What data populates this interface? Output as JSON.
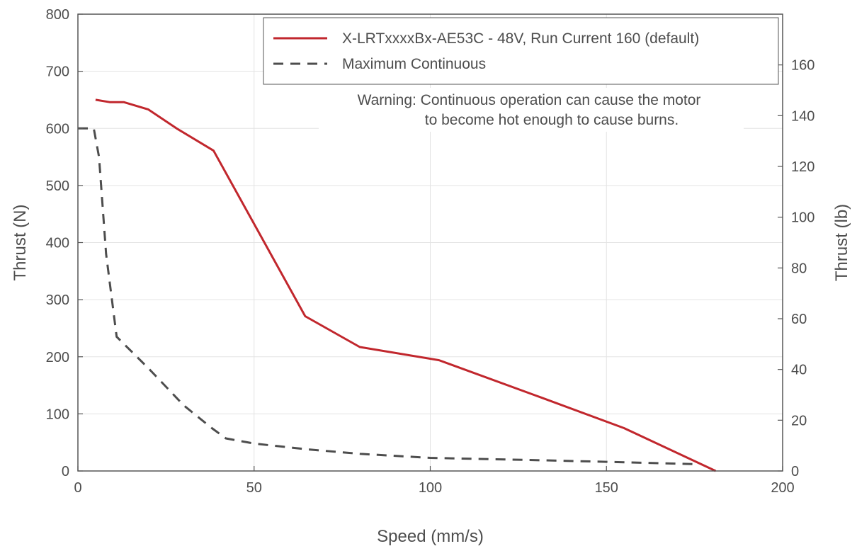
{
  "chart_data": {
    "type": "line",
    "xlabel": "Speed (mm/s)",
    "ylabel": "Thrust (N)",
    "y2label": "Thrust (lb)",
    "xlim": [
      0,
      200
    ],
    "ylim": [
      0,
      800
    ],
    "y2lim": [
      0,
      180
    ],
    "xticks": [
      "0",
      "50",
      "100",
      "150",
      "200"
    ],
    "yticks": [
      "0",
      "100",
      "200",
      "300",
      "400",
      "500",
      "600",
      "700",
      "800"
    ],
    "y2ticks": [
      "0",
      "20",
      "40",
      "60",
      "80",
      "100",
      "120",
      "140",
      "160"
    ],
    "grid": true,
    "legend_position": "top-right",
    "series": [
      {
        "name": "X-LRTxxxxBx-AE53C - 48V, Run Current 160 (default)",
        "style": "solid",
        "color": "#c1272d",
        "x": [
          5,
          9,
          13,
          20,
          28,
          38.5,
          64.5,
          80,
          102.5,
          130,
          155,
          181
        ],
        "y": [
          650,
          646,
          646,
          633,
          600,
          561,
          271,
          217,
          194,
          132,
          75,
          0
        ]
      },
      {
        "name": "Maximum Continuous",
        "style": "dashed",
        "color": "#4d4d4d",
        "x": [
          0,
          4.5,
          6,
          8,
          11,
          20,
          30,
          38,
          42,
          50,
          65,
          80,
          100,
          130,
          150,
          175
        ],
        "y": [
          600,
          600,
          550,
          380,
          235,
          180,
          115,
          75,
          57,
          48,
          38,
          30,
          23,
          19,
          16,
          12
        ]
      }
    ],
    "annotation": {
      "line1": "Warning: Continuous operation can cause the motor",
      "line2": "to become hot enough to cause burns."
    }
  }
}
